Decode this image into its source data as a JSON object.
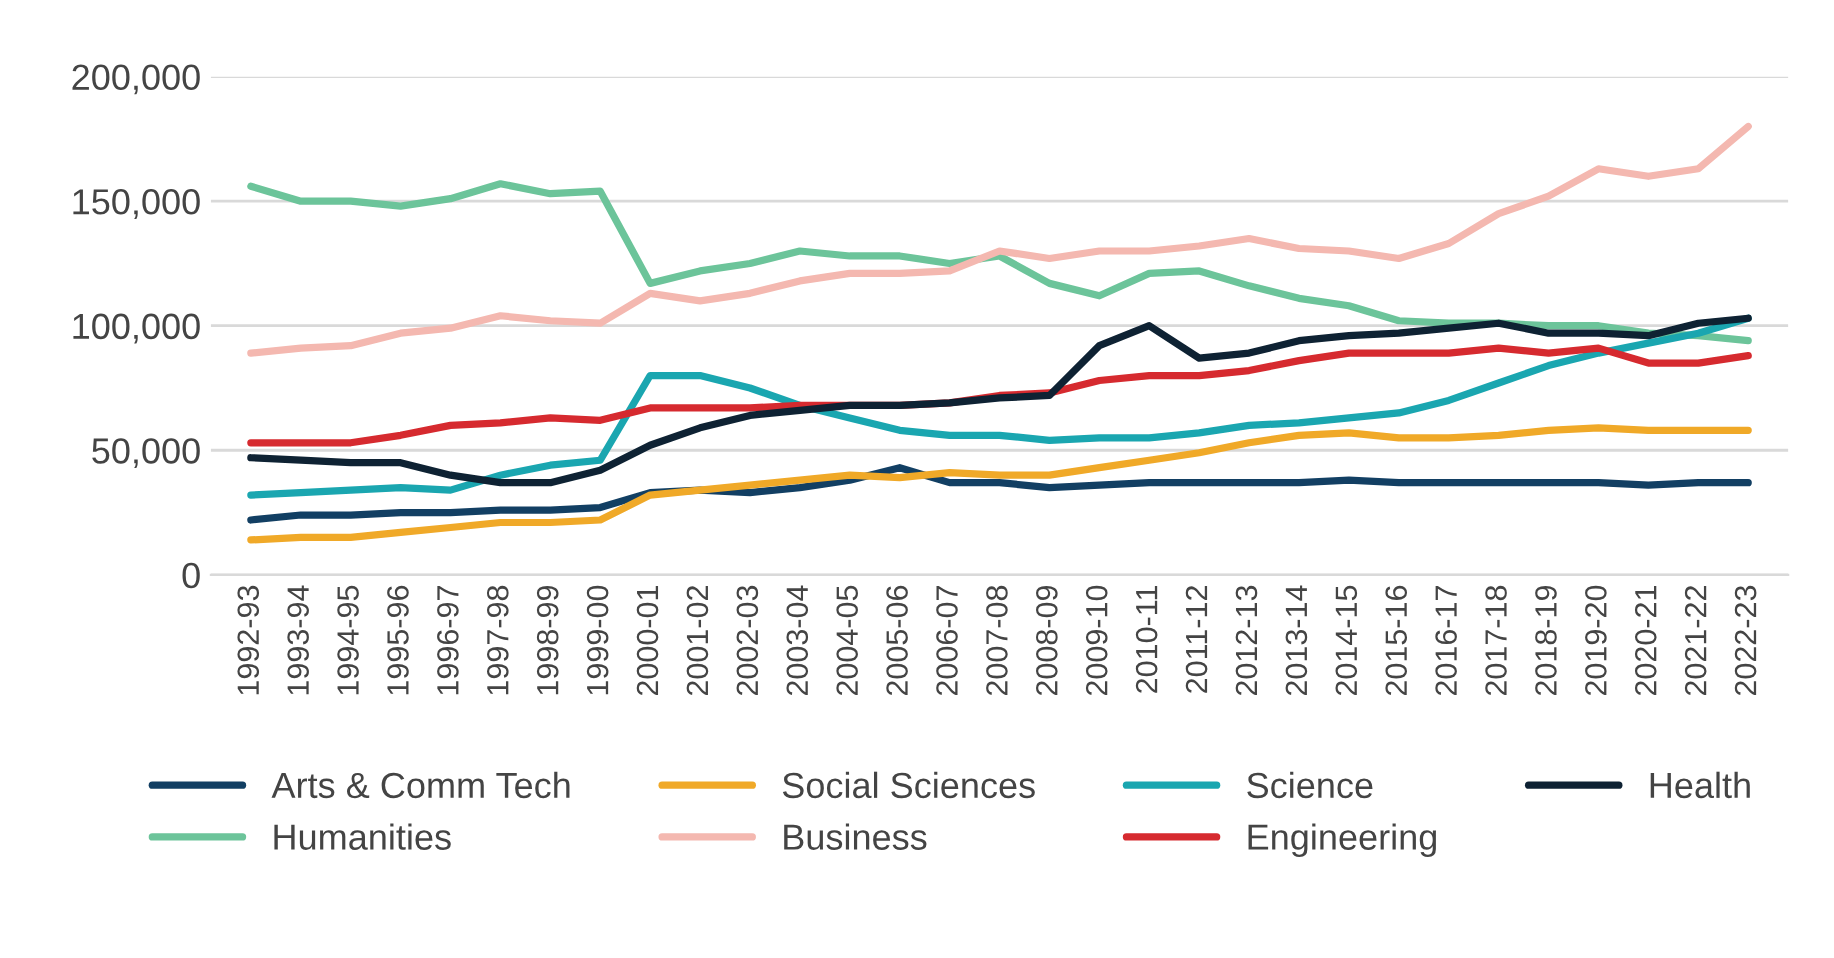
{
  "chart_data": {
    "type": "line",
    "categories": [
      "1992-93",
      "1993-94",
      "1994-95",
      "1995-96",
      "1996-97",
      "1997-98",
      "1998-99",
      "1999-00",
      "2000-01",
      "2001-02",
      "2002-03",
      "2003-04",
      "2004-05",
      "2005-06",
      "2006-07",
      "2007-08",
      "2008-09",
      "2009-10",
      "2010-11",
      "2011-12",
      "2012-13",
      "2013-14",
      "2014-15",
      "2015-16",
      "2016-17",
      "2017-18",
      "2018-19",
      "2019-20",
      "2020-21",
      "2021-22",
      "2022-23"
    ],
    "series": [
      {
        "name": "Arts & Comm Tech",
        "color": "#123f63",
        "values": [
          22000,
          24000,
          24000,
          25000,
          25000,
          26000,
          26000,
          27000,
          33000,
          34000,
          33000,
          35000,
          38000,
          43000,
          37000,
          37000,
          35000,
          36000,
          37000,
          37000,
          37000,
          37000,
          38000,
          37000,
          37000,
          37000,
          37000,
          37000,
          36000,
          37000,
          37000
        ]
      },
      {
        "name": "Humanities",
        "color": "#6cc49a",
        "values": [
          156000,
          150000,
          150000,
          148000,
          151000,
          157000,
          153000,
          154000,
          117000,
          122000,
          125000,
          130000,
          128000,
          128000,
          125000,
          128000,
          117000,
          112000,
          121000,
          122000,
          116000,
          111000,
          108000,
          102000,
          101000,
          101000,
          100000,
          100000,
          97000,
          96000,
          94000
        ]
      },
      {
        "name": "Social Sciences",
        "color": "#f0a928",
        "values": [
          14000,
          15000,
          15000,
          17000,
          19000,
          21000,
          21000,
          22000,
          32000,
          34000,
          36000,
          38000,
          40000,
          39000,
          41000,
          40000,
          40000,
          43000,
          46000,
          49000,
          53000,
          56000,
          57000,
          55000,
          55000,
          56000,
          58000,
          59000,
          58000,
          58000,
          58000
        ]
      },
      {
        "name": "Business",
        "color": "#f4b8b0",
        "values": [
          89000,
          91000,
          92000,
          97000,
          99000,
          104000,
          102000,
          101000,
          113000,
          110000,
          113000,
          118000,
          121000,
          121000,
          122000,
          130000,
          127000,
          130000,
          130000,
          132000,
          135000,
          131000,
          130000,
          127000,
          133000,
          145000,
          152000,
          163000,
          160000,
          163000,
          180000
        ]
      },
      {
        "name": "Science",
        "color": "#1aa6b0",
        "values": [
          32000,
          33000,
          34000,
          35000,
          34000,
          40000,
          44000,
          46000,
          80000,
          80000,
          75000,
          68000,
          63000,
          58000,
          56000,
          56000,
          54000,
          55000,
          55000,
          57000,
          60000,
          61000,
          63000,
          65000,
          70000,
          77000,
          84000,
          89000,
          93000,
          97000,
          103000
        ]
      },
      {
        "name": "Engineering",
        "color": "#d62a2f",
        "values": [
          53000,
          53000,
          53000,
          56000,
          60000,
          61000,
          63000,
          62000,
          67000,
          67000,
          67000,
          68000,
          68000,
          68000,
          69000,
          72000,
          73000,
          78000,
          80000,
          80000,
          82000,
          86000,
          89000,
          89000,
          89000,
          91000,
          89000,
          91000,
          85000,
          85000,
          88000
        ]
      },
      {
        "name": "Health",
        "color": "#0e2233",
        "values": [
          47000,
          46000,
          45000,
          45000,
          40000,
          37000,
          37000,
          42000,
          52000,
          59000,
          64000,
          66000,
          68000,
          68000,
          69000,
          71000,
          72000,
          92000,
          100000,
          87000,
          89000,
          94000,
          96000,
          97000,
          99000,
          101000,
          97000,
          97000,
          96000,
          101000,
          103000
        ]
      }
    ],
    "ylim": [
      0,
      200000
    ],
    "yticks": [
      {
        "value": 0,
        "label": "0"
      },
      {
        "value": 50000,
        "label": "50,000"
      },
      {
        "value": 100000,
        "label": "100,000"
      },
      {
        "value": 150000,
        "label": "150,000"
      },
      {
        "value": 200000,
        "label": "200,000"
      }
    ],
    "grid": "y",
    "legend": "bottom",
    "marker": "none",
    "line_style": "solid"
  }
}
